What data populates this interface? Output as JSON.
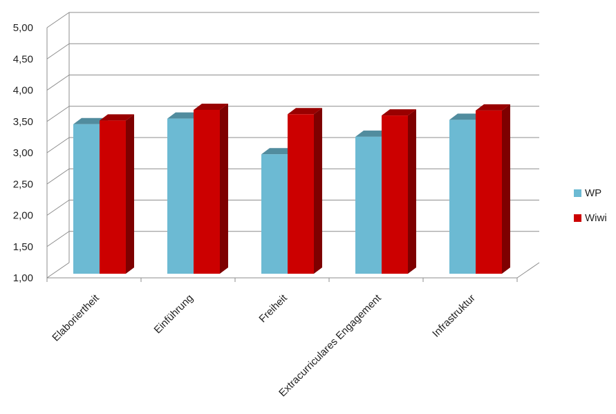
{
  "chart_data": {
    "type": "bar",
    "title": "",
    "xlabel": "",
    "ylabel": "",
    "categories": [
      "Elaboriertheit",
      "Einführung",
      "Freiheit",
      "Extracurriculares Engagement",
      "Infrastruktur"
    ],
    "series": [
      {
        "name": "WP",
        "values": [
          3.39,
          3.48,
          2.91,
          3.19,
          3.46
        ],
        "color": "#6cbad3"
      },
      {
        "name": "Wiwi",
        "values": [
          3.45,
          3.62,
          3.55,
          3.53,
          3.61
        ],
        "color": "#cc0000"
      }
    ],
    "ylim": [
      1.0,
      5.0
    ],
    "yticks": [
      "1,00",
      "1,50",
      "2,00",
      "2,50",
      "3,00",
      "3,50",
      "4,00",
      "4,50",
      "5,00"
    ],
    "grid": true,
    "legend_position": "right",
    "style": "3d-clustered-column"
  }
}
